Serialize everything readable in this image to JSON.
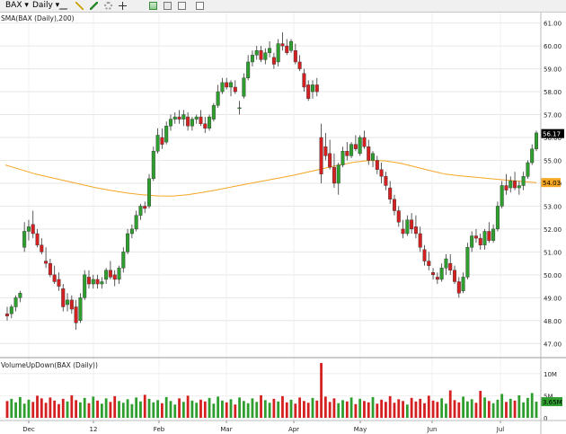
{
  "toolbar": {
    "symbol": "BAX",
    "interval": "Daily",
    "icons": [
      "pencil-icon",
      "line-tool-icon",
      "paint-icon",
      "gear-icon",
      "crosshair-icon",
      "add-indicator-icon",
      "screenshot-icon",
      "print-icon",
      "fullscreen-icon"
    ]
  },
  "chart_data": [
    {
      "type": "candlestick",
      "title": "",
      "indicator_label": "SMA(BAX (Daily),200)",
      "x_tick_labels": [
        "Dec",
        "12",
        "Feb",
        "Mar",
        "Apr",
        "May",
        "Jun",
        "Jul"
      ],
      "y_ticks": [
        "47.00",
        "48.00",
        "49.00",
        "50.00",
        "51.00",
        "52.00",
        "53.00",
        "54.00",
        "55.00",
        "56.00",
        "57.00",
        "58.00",
        "59.00",
        "60.00",
        "61.00"
      ],
      "ylim": [
        46.5,
        61.3
      ],
      "last_price": "56.17",
      "sma_value": "54.03",
      "colors": {
        "up": "#2e9e2e",
        "down": "#d42020",
        "sma": "#f5a623",
        "last_badge": "#000000",
        "sma_badge": "#f5a623"
      },
      "candles": [
        [
          48.3,
          48.6,
          48.0,
          48.2
        ],
        [
          48.3,
          48.7,
          48.1,
          48.6
        ],
        [
          48.6,
          49.1,
          48.4,
          49.0
        ],
        [
          49.0,
          49.3,
          48.8,
          49.2
        ],
        [
          51.2,
          52.3,
          51.0,
          51.9
        ],
        [
          51.9,
          52.4,
          51.5,
          52.1
        ],
        [
          52.2,
          52.8,
          51.6,
          51.8
        ],
        [
          51.8,
          52.0,
          51.2,
          51.3
        ],
        [
          51.3,
          51.6,
          50.9,
          51.0
        ],
        [
          50.6,
          51.2,
          50.3,
          50.5
        ],
        [
          50.5,
          50.7,
          49.9,
          50.0
        ],
        [
          50.0,
          50.4,
          49.6,
          49.7
        ],
        [
          49.8,
          50.1,
          49.3,
          49.5
        ],
        [
          49.4,
          49.6,
          48.4,
          48.6
        ],
        [
          48.7,
          49.2,
          48.4,
          48.9
        ],
        [
          48.9,
          49.1,
          48.3,
          48.5
        ],
        [
          48.6,
          48.9,
          47.6,
          47.9
        ],
        [
          48.0,
          49.2,
          47.9,
          49.0
        ],
        [
          49.0,
          50.2,
          48.9,
          50.0
        ],
        [
          49.9,
          50.2,
          49.4,
          49.6
        ],
        [
          49.6,
          50.0,
          49.4,
          49.8
        ],
        [
          49.8,
          50.0,
          49.4,
          49.6
        ],
        [
          49.6,
          49.9,
          49.4,
          49.7
        ],
        [
          49.8,
          50.3,
          49.6,
          50.2
        ],
        [
          50.2,
          50.6,
          49.8,
          49.9
        ],
        [
          50.0,
          50.2,
          49.5,
          49.8
        ],
        [
          49.8,
          50.4,
          49.6,
          50.3
        ],
        [
          50.3,
          51.2,
          50.1,
          51.0
        ],
        [
          51.0,
          52.0,
          50.9,
          51.8
        ],
        [
          51.8,
          52.2,
          51.6,
          52.0
        ],
        [
          52.0,
          52.8,
          51.9,
          52.6
        ],
        [
          52.6,
          53.1,
          52.4,
          53.0
        ],
        [
          53.0,
          53.2,
          52.7,
          52.9
        ],
        [
          53.0,
          54.4,
          52.9,
          54.2
        ],
        [
          54.2,
          55.6,
          54.1,
          55.4
        ],
        [
          55.4,
          56.4,
          55.3,
          56.1
        ],
        [
          56.0,
          56.4,
          55.5,
          55.7
        ],
        [
          55.8,
          56.7,
          55.7,
          56.5
        ],
        [
          56.5,
          57.0,
          56.3,
          56.8
        ],
        [
          56.8,
          57.1,
          56.6,
          56.9
        ],
        [
          56.9,
          57.2,
          56.6,
          56.8
        ],
        [
          56.8,
          57.2,
          56.5,
          57.0
        ],
        [
          56.9,
          57.1,
          56.3,
          56.5
        ],
        [
          56.5,
          56.9,
          56.3,
          56.8
        ],
        [
          56.8,
          57.0,
          56.6,
          56.9
        ],
        [
          56.9,
          57.2,
          56.5,
          56.6
        ],
        [
          56.6,
          56.9,
          56.2,
          56.4
        ],
        [
          56.4,
          57.0,
          56.3,
          56.9
        ],
        [
          56.8,
          57.5,
          56.7,
          57.4
        ],
        [
          57.4,
          58.3,
          57.3,
          58.0
        ],
        [
          58.0,
          58.6,
          57.9,
          58.4
        ],
        [
          58.4,
          58.6,
          58.1,
          58.2
        ],
        [
          58.2,
          58.5,
          57.8,
          58.4
        ],
        [
          58.2,
          58.5,
          57.9,
          58.0
        ],
        [
          57.3,
          57.6,
          57.0,
          57.3
        ],
        [
          57.8,
          58.8,
          57.7,
          58.6
        ],
        [
          58.6,
          59.6,
          58.5,
          59.3
        ],
        [
          59.3,
          59.8,
          59.1,
          59.6
        ],
        [
          59.6,
          60.0,
          59.4,
          59.8
        ],
        [
          59.8,
          60.0,
          59.3,
          59.4
        ],
        [
          59.4,
          59.9,
          59.2,
          59.7
        ],
        [
          59.7,
          60.2,
          59.5,
          59.9
        ],
        [
          59.5,
          59.7,
          59.0,
          59.2
        ],
        [
          59.3,
          60.3,
          59.1,
          60.1
        ],
        [
          60.1,
          60.6,
          59.8,
          60.0
        ],
        [
          60.0,
          60.3,
          59.6,
          59.7
        ],
        [
          59.8,
          60.3,
          59.7,
          60.2
        ],
        [
          59.8,
          60.1,
          59.2,
          59.3
        ],
        [
          59.3,
          59.6,
          58.9,
          59.0
        ],
        [
          58.8,
          59.0,
          58.0,
          58.2
        ],
        [
          58.3,
          58.5,
          57.6,
          57.7
        ],
        [
          58.0,
          58.5,
          57.7,
          58.3
        ],
        [
          58.3,
          58.6,
          57.8,
          58.0
        ],
        [
          56.0,
          56.6,
          54.0,
          54.4
        ],
        [
          55.6,
          56.2,
          55.0,
          55.2
        ],
        [
          55.3,
          55.9,
          54.6,
          54.7
        ],
        [
          54.7,
          55.3,
          53.8,
          54.0
        ],
        [
          54.0,
          54.9,
          53.5,
          54.8
        ],
        [
          54.8,
          55.6,
          54.7,
          55.4
        ],
        [
          55.4,
          55.8,
          55.0,
          55.2
        ],
        [
          55.2,
          55.8,
          55.1,
          55.7
        ],
        [
          55.7,
          56.1,
          55.4,
          55.5
        ],
        [
          55.3,
          56.1,
          55.2,
          56.0
        ],
        [
          56.0,
          56.3,
          55.5,
          55.6
        ],
        [
          55.6,
          55.9,
          54.8,
          55.0
        ],
        [
          55.0,
          55.4,
          54.7,
          55.3
        ],
        [
          55.0,
          55.2,
          54.4,
          54.6
        ],
        [
          54.6,
          54.9,
          54.0,
          54.3
        ],
        [
          54.3,
          54.5,
          53.7,
          53.9
        ],
        [
          53.8,
          54.1,
          53.1,
          53.3
        ],
        [
          53.3,
          53.5,
          52.6,
          52.8
        ],
        [
          52.8,
          53.0,
          52.1,
          52.3
        ],
        [
          52.0,
          52.4,
          51.6,
          51.8
        ],
        [
          51.8,
          52.6,
          51.7,
          52.4
        ],
        [
          52.4,
          52.7,
          51.8,
          52.0
        ],
        [
          52.1,
          52.6,
          51.6,
          51.8
        ],
        [
          51.8,
          52.1,
          51.0,
          51.2
        ],
        [
          51.1,
          51.3,
          50.4,
          50.6
        ],
        [
          50.6,
          51.0,
          50.2,
          50.4
        ],
        [
          50.1,
          50.3,
          49.8,
          50.0
        ],
        [
          49.9,
          50.1,
          49.6,
          49.8
        ],
        [
          49.8,
          50.5,
          49.7,
          50.3
        ],
        [
          50.3,
          50.9,
          50.0,
          50.7
        ],
        [
          50.5,
          50.9,
          50.0,
          50.2
        ],
        [
          50.2,
          50.4,
          49.6,
          49.7
        ],
        [
          49.7,
          49.9,
          49.0,
          49.2
        ],
        [
          49.3,
          50.1,
          49.2,
          49.9
        ],
        [
          49.9,
          51.4,
          49.8,
          51.2
        ],
        [
          51.2,
          51.9,
          51.0,
          51.7
        ],
        [
          51.7,
          52.0,
          51.4,
          51.6
        ],
        [
          51.6,
          51.8,
          51.1,
          51.3
        ],
        [
          51.3,
          52.0,
          51.1,
          51.9
        ],
        [
          51.9,
          52.3,
          51.4,
          51.5
        ],
        [
          51.5,
          52.2,
          51.4,
          52.0
        ],
        [
          52.0,
          53.2,
          51.9,
          53.0
        ],
        [
          53.0,
          54.1,
          52.9,
          53.9
        ],
        [
          53.9,
          54.4,
          53.5,
          53.7
        ],
        [
          53.8,
          54.3,
          53.6,
          54.1
        ],
        [
          54.1,
          54.5,
          53.7,
          53.8
        ],
        [
          53.8,
          54.1,
          53.5,
          53.9
        ],
        [
          53.9,
          54.5,
          53.7,
          54.3
        ],
        [
          54.3,
          55.0,
          54.2,
          54.9
        ],
        [
          54.9,
          55.7,
          54.8,
          55.5
        ],
        [
          55.5,
          56.3,
          55.4,
          56.2
        ]
      ],
      "sma": [
        54.8,
        54.6,
        54.4,
        54.25,
        54.1,
        53.95,
        53.8,
        53.68,
        53.58,
        53.5,
        53.45,
        53.44,
        53.5,
        53.6,
        53.72,
        53.85,
        53.98,
        54.1,
        54.22,
        54.35,
        54.5,
        54.65,
        54.8,
        54.92,
        55.0,
        54.98,
        54.88,
        54.72,
        54.55,
        54.4,
        54.32,
        54.26,
        54.2,
        54.14,
        54.08,
        54.03
      ]
    },
    {
      "type": "bar",
      "title": "",
      "indicator_label": "VolumeUpDown(BAX (Daily))",
      "y_ticks": [
        "0",
        "5M",
        "10M"
      ],
      "ylim": [
        0,
        13
      ],
      "volume_badge": "3.65M",
      "volumes": [
        3.8,
        4.3,
        3.5,
        4.7,
        3.2,
        4.1,
        3.6,
        5.0,
        4.4,
        3.4,
        4.6,
        3.9,
        3.1,
        4.3,
        3.7,
        5.1,
        4.0,
        3.5,
        4.5,
        3.3,
        4.8,
        3.9,
        3.2,
        4.4,
        3.6,
        4.9,
        3.8,
        3.4,
        4.2,
        3.1,
        4.6,
        3.7,
        5.2,
        4.3,
        3.5,
        4.0,
        3.3,
        4.7,
        3.8,
        3.0,
        4.4,
        3.6,
        5.0,
        3.9,
        3.4,
        4.1,
        3.7,
        4.5,
        3.2,
        4.8,
        3.9,
        3.5,
        4.2,
        3.0,
        4.6,
        3.8,
        3.3,
        4.4,
        3.6,
        5.1,
        4.0,
        3.4,
        4.3,
        3.7,
        4.9,
        3.5,
        4.1,
        3.2,
        4.6,
        3.8,
        3.4,
        4.5,
        3.9,
        12.4,
        4.8,
        3.6,
        4.4,
        3.3,
        4.0,
        3.7,
        4.6,
        3.1,
        4.3,
        3.8,
        3.5,
        4.7,
        3.2,
        4.1,
        3.6,
        4.9,
        3.4,
        4.2,
        3.8,
        3.0,
        4.5,
        3.7,
        4.3,
        3.3,
        5.0,
        3.9,
        3.6,
        4.4,
        3.2,
        6.2,
        4.0,
        3.5,
        4.8,
        3.7,
        4.2,
        3.4,
        6.1,
        4.6,
        3.8,
        3.3,
        4.1,
        5.4,
        3.6,
        4.3,
        3.9,
        5.1,
        3.5,
        4.5,
        5.6,
        3.65
      ]
    }
  ]
}
